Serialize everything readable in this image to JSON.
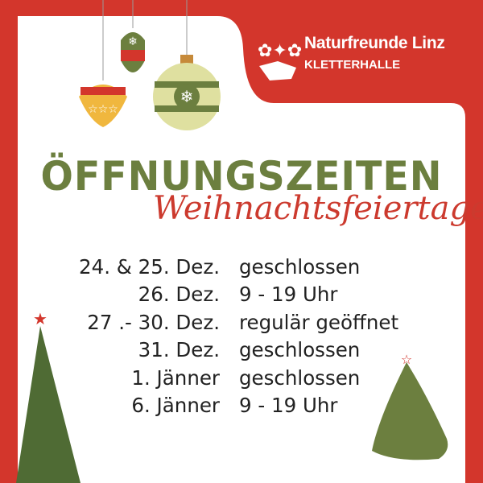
{
  "logo": {
    "name": "Naturfreunde Linz",
    "subtitle": "KLETTERHALLE"
  },
  "title": "ÖFFNUNGSZEITEN",
  "subtitle": "Weihnachtsfeiertage",
  "schedule": [
    {
      "date": "24. & 25. Dez.",
      "hours": "geschlossen"
    },
    {
      "date": "26. Dez.",
      "hours": "9 - 19 Uhr"
    },
    {
      "date": "27 .- 30. Dez.",
      "hours": "regulär geöffnet"
    },
    {
      "date": "31. Dez.",
      "hours": "geschlossen"
    },
    {
      "date": "1. Jänner",
      "hours": "geschlossen"
    },
    {
      "date": "6. Jänner",
      "hours": "9 - 19 Uhr"
    }
  ],
  "colors": {
    "background": "#d3362c",
    "card": "#ffffff",
    "title": "#6c7f3f",
    "script": "#cc3a2e",
    "tree": "#4f6b34"
  }
}
